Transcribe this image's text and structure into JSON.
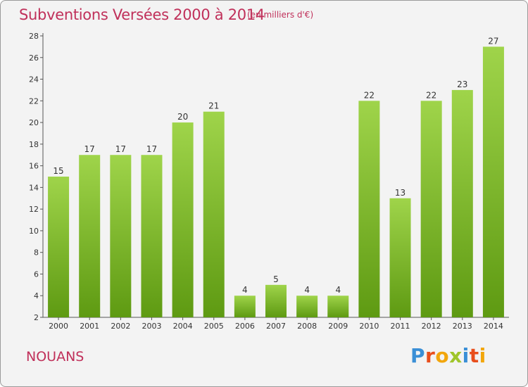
{
  "header": {
    "title": "Subventions Versées 2000 à 2014",
    "subtitle": "(en milliers d'€)"
  },
  "footer": {
    "place": "NOUANS",
    "logo_text": "Proxiti"
  },
  "colors": {
    "title": "#c0305a",
    "bar_top": "#9fd44a",
    "bar_bottom": "#5e9a12",
    "logo_letters": [
      "#3a8fd6",
      "#e84e1c",
      "#f2a60c",
      "#9fc52a",
      "#3a8fd6",
      "#e84e1c",
      "#f2a60c"
    ]
  },
  "chart_data": {
    "type": "bar",
    "title": "Subventions Versées 2000 à 2014",
    "xlabel": "",
    "ylabel": "",
    "categories": [
      "2000",
      "2001",
      "2002",
      "2003",
      "2004",
      "2005",
      "2006",
      "2007",
      "2008",
      "2009",
      "2010",
      "2011",
      "2012",
      "2013",
      "2014"
    ],
    "values": [
      15,
      17,
      17,
      17,
      20,
      21,
      4,
      5,
      4,
      4,
      22,
      13,
      22,
      23,
      27
    ],
    "ylim": [
      2,
      28
    ],
    "yticks": [
      2,
      4,
      6,
      8,
      10,
      12,
      14,
      16,
      18,
      20,
      22,
      24,
      26,
      28
    ],
    "grid": false,
    "legend": "none"
  }
}
